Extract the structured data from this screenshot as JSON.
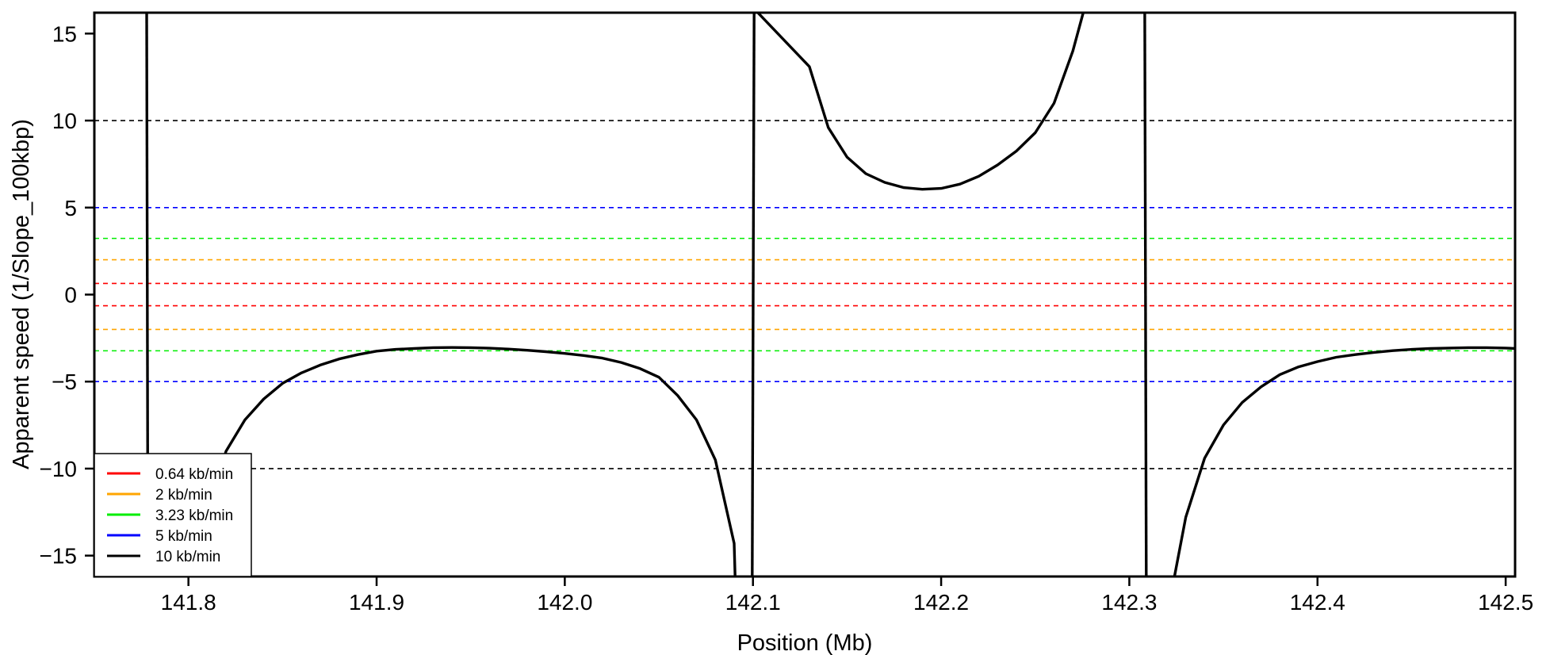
{
  "chart_data": {
    "type": "line",
    "xlabel": "Position (Mb)",
    "ylabel": "Apparent speed (1/Slope_100kbp)",
    "xlim": [
      141.75,
      142.505
    ],
    "ylim": [
      -16.2,
      16.2
    ],
    "x_ticks": [
      141.8,
      141.9,
      142.0,
      142.1,
      142.2,
      142.3,
      142.4,
      142.5
    ],
    "x_tick_labels": [
      "141.8",
      "141.9",
      "142.0",
      "142.1",
      "142.2",
      "142.3",
      "142.4",
      "142.5"
    ],
    "y_ticks": [
      -15,
      -10,
      -5,
      0,
      5,
      10,
      15
    ],
    "y_tick_labels": [
      "−15",
      "−10",
      "−5",
      "0",
      "5",
      "10",
      "15"
    ],
    "reference_lines": [
      {
        "label": "10 kb/min",
        "value": 10,
        "color": "#000000"
      },
      {
        "label": "5 kb/min",
        "value": 5,
        "color": "#0000ff"
      },
      {
        "label": "3.23 kb/min",
        "value": 3.23,
        "color": "#00ee00"
      },
      {
        "label": "2 kb/min",
        "value": 2,
        "color": "#ffa500"
      },
      {
        "label": "0.64 kb/min",
        "value": 0.64,
        "color": "#ff0000"
      }
    ],
    "legend": {
      "position": "bottom-left",
      "entries": [
        {
          "label": "0.64 kb/min",
          "color": "#ff0000"
        },
        {
          "label": "2 kb/min",
          "color": "#ffa500"
        },
        {
          "label": "3.23 kb/min",
          "color": "#00ee00"
        },
        {
          "label": "5 kb/min",
          "color": "#0000ff"
        },
        {
          "label": "10 kb/min",
          "color": "#000000"
        }
      ]
    },
    "series": [
      {
        "color": "#000000",
        "segments": [
          [
            [
              141.7778,
              16.2
            ],
            [
              141.7785,
              -16.2
            ]
          ],
          [
            [
              141.8,
              -16.2
            ],
            [
              141.81,
              -12.4
            ],
            [
              141.82,
              -9.0
            ],
            [
              141.83,
              -7.2
            ],
            [
              141.84,
              -6.0
            ],
            [
              141.85,
              -5.1
            ],
            [
              141.86,
              -4.5
            ],
            [
              141.87,
              -4.05
            ],
            [
              141.88,
              -3.7
            ],
            [
              141.89,
              -3.45
            ],
            [
              141.9,
              -3.25
            ],
            [
              141.91,
              -3.15
            ],
            [
              141.92,
              -3.1
            ],
            [
              141.93,
              -3.05
            ],
            [
              141.94,
              -3.04
            ],
            [
              141.95,
              -3.05
            ],
            [
              141.96,
              -3.08
            ],
            [
              141.97,
              -3.13
            ],
            [
              141.98,
              -3.2
            ],
            [
              141.99,
              -3.28
            ],
            [
              142.0,
              -3.38
            ],
            [
              142.01,
              -3.5
            ],
            [
              142.02,
              -3.65
            ],
            [
              142.03,
              -3.9
            ],
            [
              142.04,
              -4.25
            ],
            [
              142.05,
              -4.75
            ],
            [
              142.06,
              -5.8
            ],
            [
              142.07,
              -7.2
            ],
            [
              142.08,
              -9.5
            ],
            [
              142.09,
              -14.3
            ],
            [
              142.0905,
              -16.2
            ]
          ],
          [
            [
              142.0996,
              -16.2
            ],
            [
              142.1006,
              16.2
            ]
          ],
          [
            [
              142.1026,
              16.2
            ],
            [
              142.13,
              13.1
            ],
            [
              142.14,
              9.6
            ],
            [
              142.15,
              7.9
            ],
            [
              142.16,
              6.95
            ],
            [
              142.17,
              6.45
            ],
            [
              142.18,
              6.15
            ],
            [
              142.19,
              6.05
            ],
            [
              142.2,
              6.1
            ],
            [
              142.21,
              6.35
            ],
            [
              142.22,
              6.8
            ],
            [
              142.23,
              7.45
            ],
            [
              142.24,
              8.25
            ],
            [
              142.25,
              9.3
            ],
            [
              142.26,
              11.0
            ],
            [
              142.27,
              14.0
            ],
            [
              142.2755,
              16.2
            ]
          ],
          [
            [
              142.3082,
              16.2
            ],
            [
              142.309,
              -16.2
            ]
          ],
          [
            [
              142.324,
              -16.2
            ],
            [
              142.33,
              -12.8
            ],
            [
              142.34,
              -9.4
            ],
            [
              142.35,
              -7.5
            ],
            [
              142.36,
              -6.2
            ],
            [
              142.37,
              -5.3
            ],
            [
              142.38,
              -4.6
            ],
            [
              142.39,
              -4.15
            ],
            [
              142.4,
              -3.85
            ],
            [
              142.41,
              -3.6
            ],
            [
              142.42,
              -3.45
            ],
            [
              142.43,
              -3.32
            ],
            [
              142.44,
              -3.22
            ],
            [
              142.45,
              -3.15
            ],
            [
              142.46,
              -3.1
            ],
            [
              142.47,
              -3.07
            ],
            [
              142.48,
              -3.05
            ],
            [
              142.49,
              -3.05
            ],
            [
              142.5,
              -3.07
            ],
            [
              142.505,
              -3.1
            ]
          ]
        ]
      }
    ]
  }
}
